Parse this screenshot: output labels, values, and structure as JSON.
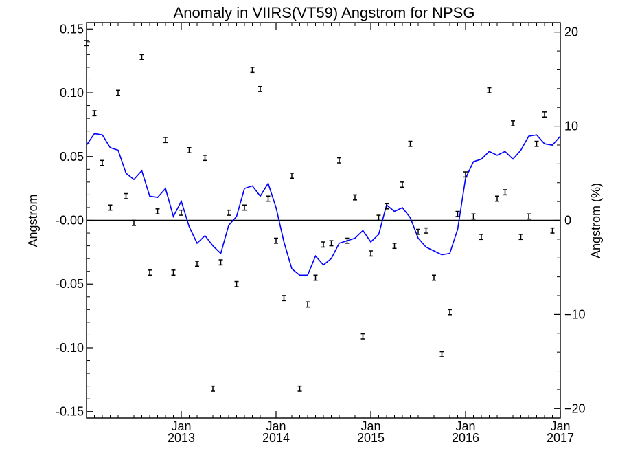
{
  "chart_data": {
    "type": "scatter",
    "title": "Anomaly in VIIRS(VT59) Angstrom for NPSG",
    "ylabel": "Angstrom",
    "y2label": "Angstrom (%)",
    "xlabel": "",
    "xlim": [
      "2012-01",
      "2017-01"
    ],
    "ylim": [
      -0.155,
      0.155
    ],
    "y2lim": [
      -21.0,
      21.0
    ],
    "grid": false,
    "zero_line": true,
    "x_ticks": [
      {
        "month": "2013-01",
        "top": "Jan",
        "bottom": "2013"
      },
      {
        "month": "2014-01",
        "top": "Jan",
        "bottom": "2014"
      },
      {
        "month": "2015-01",
        "top": "Jan",
        "bottom": "2015"
      },
      {
        "month": "2016-01",
        "top": "Jan",
        "bottom": "2016"
      },
      {
        "month": "2017-01",
        "top": "Jan",
        "bottom": "2017"
      }
    ],
    "y_ticks": [
      0.15,
      0.1,
      0.05,
      -0.0,
      -0.05,
      -0.1,
      -0.15
    ],
    "y_tick_labels": [
      "0.15",
      "0.10",
      "0.05",
      "-0.00",
      "-0.05",
      "-0.10",
      "-0.15"
    ],
    "y2_ticks": [
      20,
      10,
      0,
      -10,
      -20
    ],
    "y2_tick_labels": [
      "20",
      "10",
      "0",
      "−10",
      "−20"
    ],
    "series": [
      {
        "kind": "errorbar-points",
        "color": "#000000",
        "x": [
          "2012-01",
          "2012-02",
          "2012-03",
          "2012-04",
          "2012-05",
          "2012-06",
          "2012-07",
          "2012-08",
          "2012-09",
          "2012-10",
          "2012-11",
          "2012-12",
          "2013-01",
          "2013-02",
          "2013-03",
          "2013-04",
          "2013-05",
          "2013-06",
          "2013-07",
          "2013-08",
          "2013-09",
          "2013-10",
          "2013-11",
          "2013-12",
          "2014-01",
          "2014-02",
          "2014-03",
          "2014-04",
          "2014-05",
          "2014-06",
          "2014-07",
          "2014-08",
          "2014-09",
          "2014-10",
          "2014-11",
          "2014-12",
          "2015-01",
          "2015-02",
          "2015-03",
          "2015-04",
          "2015-05",
          "2015-06",
          "2015-07",
          "2015-08",
          "2015-09",
          "2015-10",
          "2015-11",
          "2015-12",
          "2016-01",
          "2016-02",
          "2016-03",
          "2016-04",
          "2016-05",
          "2016-06",
          "2016-07",
          "2016-08",
          "2016-09",
          "2016-10",
          "2016-11",
          "2016-12"
        ],
        "values": [
          0.139,
          0.084,
          0.045,
          0.01,
          0.1,
          0.019,
          -0.002,
          0.128,
          -0.041,
          0.007,
          0.063,
          -0.041,
          0.006,
          0.055,
          -0.034,
          0.049,
          -0.132,
          -0.033,
          0.006,
          -0.05,
          0.01,
          0.118,
          0.103,
          0.017,
          -0.016,
          -0.061,
          0.035,
          -0.132,
          -0.066,
          -0.045,
          -0.019,
          -0.018,
          0.047,
          -0.016,
          0.018,
          -0.091,
          -0.026,
          0.002,
          0.011,
          -0.02,
          0.028,
          0.06,
          -0.009,
          -0.008,
          -0.045,
          -0.105,
          -0.072,
          0.005,
          0.036,
          0.003,
          -0.013,
          0.102,
          0.017,
          0.022,
          0.076,
          -0.013,
          0.003,
          0.06,
          0.083,
          -0.008
        ],
        "error": 0.002
      },
      {
        "kind": "line",
        "color": "#0000ff",
        "x": [
          "2012-01",
          "2012-02",
          "2012-03",
          "2012-04",
          "2012-05",
          "2012-06",
          "2012-07",
          "2012-08",
          "2012-09",
          "2012-10",
          "2012-11",
          "2012-12",
          "2013-01",
          "2013-02",
          "2013-03",
          "2013-04",
          "2013-05",
          "2013-06",
          "2013-07",
          "2013-08",
          "2013-09",
          "2013-10",
          "2013-11",
          "2013-12",
          "2014-01",
          "2014-02",
          "2014-03",
          "2014-04",
          "2014-05",
          "2014-06",
          "2014-07",
          "2014-08",
          "2014-09",
          "2014-10",
          "2014-11",
          "2014-12",
          "2015-01",
          "2015-02",
          "2015-03",
          "2015-04",
          "2015-05",
          "2015-06",
          "2015-07",
          "2015-08",
          "2015-09",
          "2015-10",
          "2015-11",
          "2015-12",
          "2016-01",
          "2016-02",
          "2016-03",
          "2016-04",
          "2016-05",
          "2016-06",
          "2016-07",
          "2016-08",
          "2016-09",
          "2016-10",
          "2016-11",
          "2016-12",
          "2017-01"
        ],
        "values": [
          0.059,
          0.068,
          0.067,
          0.057,
          0.055,
          0.037,
          0.032,
          0.039,
          0.019,
          0.018,
          0.025,
          0.003,
          0.015,
          -0.005,
          -0.018,
          -0.012,
          -0.02,
          -0.026,
          -0.004,
          0.003,
          0.025,
          0.027,
          0.019,
          0.029,
          0.01,
          -0.017,
          -0.038,
          -0.043,
          -0.043,
          -0.028,
          -0.035,
          -0.03,
          -0.018,
          -0.016,
          -0.014,
          -0.008,
          -0.017,
          -0.011,
          0.012,
          0.007,
          0.01,
          0.002,
          -0.014,
          -0.021,
          -0.024,
          -0.027,
          -0.026,
          -0.007,
          0.033,
          0.046,
          0.048,
          0.054,
          0.051,
          0.054,
          0.048,
          0.055,
          0.066,
          0.067,
          0.06,
          0.059,
          0.066
        ]
      }
    ]
  }
}
